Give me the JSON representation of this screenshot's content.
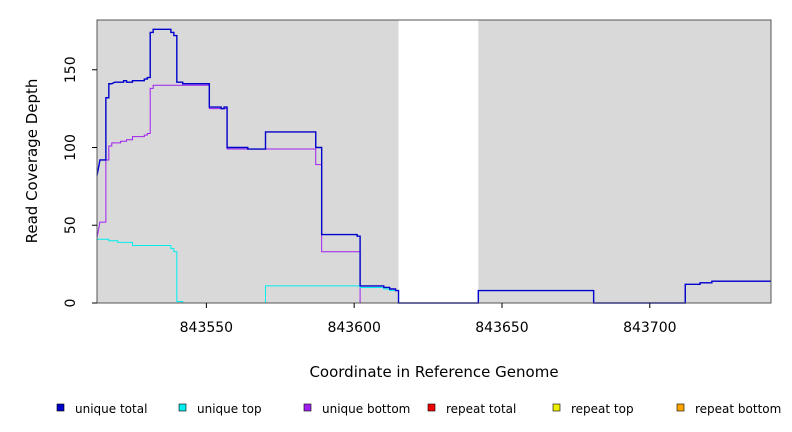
{
  "chart_data": {
    "type": "line",
    "title": "",
    "xlabel": "Coordinate in Reference Genome",
    "ylabel": "Read Coverage Depth",
    "xlim": [
      843513,
      843741
    ],
    "ylim": [
      0,
      182
    ],
    "x_ticks": [
      843550,
      843600,
      843650,
      843700
    ],
    "x_tick_labels": [
      "843550",
      "843600",
      "843650",
      "843700"
    ],
    "y_ticks": [
      0,
      50,
      100,
      150
    ],
    "y_tick_labels": [
      "0",
      "50",
      "100",
      "150"
    ],
    "grid": false,
    "legend": "bottom",
    "background_color": "#d9d9d9",
    "unshaded_regions": [
      [
        843615,
        843642
      ]
    ],
    "series": [
      {
        "name": "unique total",
        "color": "#0000cc",
        "points": [
          [
            843513,
            82
          ],
          [
            843514,
            92
          ],
          [
            843516,
            92
          ],
          [
            843516,
            132
          ],
          [
            843517,
            132
          ],
          [
            843517,
            141
          ],
          [
            843518,
            141
          ],
          [
            843519,
            142
          ],
          [
            843522,
            142
          ],
          [
            843522,
            143
          ],
          [
            843523,
            143
          ],
          [
            843523,
            142
          ],
          [
            843525,
            142
          ],
          [
            843525,
            143
          ],
          [
            843529,
            143
          ],
          [
            843529,
            144
          ],
          [
            843530,
            144
          ],
          [
            843530,
            145
          ],
          [
            843531,
            145
          ],
          [
            843531,
            174
          ],
          [
            843532,
            174
          ],
          [
            843532,
            176
          ],
          [
            843538,
            176
          ],
          [
            843538,
            174
          ],
          [
            843539,
            174
          ],
          [
            843539,
            172
          ],
          [
            843540,
            172
          ],
          [
            843540,
            142
          ],
          [
            843542,
            142
          ],
          [
            843542,
            141
          ],
          [
            843551,
            141
          ],
          [
            843551,
            126
          ],
          [
            843555,
            126
          ],
          [
            843555,
            125
          ],
          [
            843556,
            125
          ],
          [
            843556,
            126
          ],
          [
            843557,
            126
          ],
          [
            843557,
            100
          ],
          [
            843564,
            100
          ],
          [
            843564,
            99
          ],
          [
            843570,
            99
          ],
          [
            843570,
            110
          ],
          [
            843587,
            110
          ],
          [
            843587,
            100
          ],
          [
            843589,
            100
          ],
          [
            843589,
            44
          ],
          [
            843601,
            44
          ],
          [
            843601,
            43
          ],
          [
            843602,
            43
          ],
          [
            843602,
            11
          ],
          [
            843610,
            11
          ],
          [
            843610,
            10
          ],
          [
            843612,
            10
          ],
          [
            843612,
            9
          ],
          [
            843614,
            9
          ],
          [
            843614,
            8
          ],
          [
            843615,
            8
          ],
          [
            843615,
            0
          ],
          [
            843642,
            0
          ],
          [
            843642,
            8
          ],
          [
            843681,
            8
          ],
          [
            843681,
            0
          ],
          [
            843712,
            0
          ],
          [
            843712,
            12
          ],
          [
            843717,
            12
          ],
          [
            843717,
            13
          ],
          [
            843721,
            13
          ],
          [
            843721,
            14
          ],
          [
            843741,
            14
          ]
        ]
      },
      {
        "name": "unique top",
        "color": "#00eeee",
        "points": [
          [
            843513,
            41
          ],
          [
            843517,
            41
          ],
          [
            843517,
            40
          ],
          [
            843520,
            40
          ],
          [
            843520,
            39
          ],
          [
            843525,
            39
          ],
          [
            843525,
            37
          ],
          [
            843538,
            37
          ],
          [
            843538,
            35
          ],
          [
            843539,
            35
          ],
          [
            843539,
            33
          ],
          [
            843540,
            33
          ],
          [
            843540,
            1
          ],
          [
            843542,
            1
          ],
          [
            843542,
            0
          ],
          [
            843570,
            0
          ],
          [
            843570,
            11
          ],
          [
            843602,
            11
          ],
          [
            843602,
            10
          ],
          [
            843610,
            10
          ],
          [
            843610,
            9
          ],
          [
            843612,
            9
          ],
          [
            843612,
            8
          ],
          [
            843615,
            8
          ],
          [
            843615,
            0
          ],
          [
            843741,
            0
          ]
        ]
      },
      {
        "name": "unique bottom",
        "color": "#a020f0",
        "points": [
          [
            843513,
            42
          ],
          [
            843514,
            52
          ],
          [
            843516,
            52
          ],
          [
            843516,
            92
          ],
          [
            843517,
            92
          ],
          [
            843517,
            101
          ],
          [
            843518,
            101
          ],
          [
            843518,
            103
          ],
          [
            843521,
            103
          ],
          [
            843521,
            104
          ],
          [
            843523,
            104
          ],
          [
            843523,
            105
          ],
          [
            843525,
            105
          ],
          [
            843525,
            107
          ],
          [
            843529,
            107
          ],
          [
            843529,
            108
          ],
          [
            843530,
            108
          ],
          [
            843530,
            109
          ],
          [
            843531,
            109
          ],
          [
            843531,
            138
          ],
          [
            843532,
            138
          ],
          [
            843532,
            140
          ],
          [
            843551,
            140
          ],
          [
            843551,
            125
          ],
          [
            843557,
            125
          ],
          [
            843557,
            99
          ],
          [
            843587,
            99
          ],
          [
            843587,
            89
          ],
          [
            843589,
            89
          ],
          [
            843589,
            33
          ],
          [
            843602,
            33
          ],
          [
            843602,
            0
          ],
          [
            843642,
            0
          ],
          [
            843642,
            8
          ],
          [
            843681,
            8
          ],
          [
            843681,
            0
          ],
          [
            843712,
            0
          ],
          [
            843712,
            12
          ],
          [
            843717,
            12
          ],
          [
            843717,
            13
          ],
          [
            843721,
            13
          ],
          [
            843721,
            14
          ],
          [
            843741,
            14
          ]
        ]
      },
      {
        "name": "repeat total",
        "color": "#ee0000",
        "points": [
          [
            843513,
            0
          ],
          [
            843741,
            0
          ]
        ]
      },
      {
        "name": "repeat top",
        "color": "#eeee00",
        "points": [
          [
            843513,
            0
          ],
          [
            843741,
            0
          ]
        ]
      },
      {
        "name": "repeat bottom",
        "color": "#ffa500",
        "points": [
          [
            843513,
            0
          ],
          [
            843741,
            0
          ]
        ]
      }
    ]
  }
}
